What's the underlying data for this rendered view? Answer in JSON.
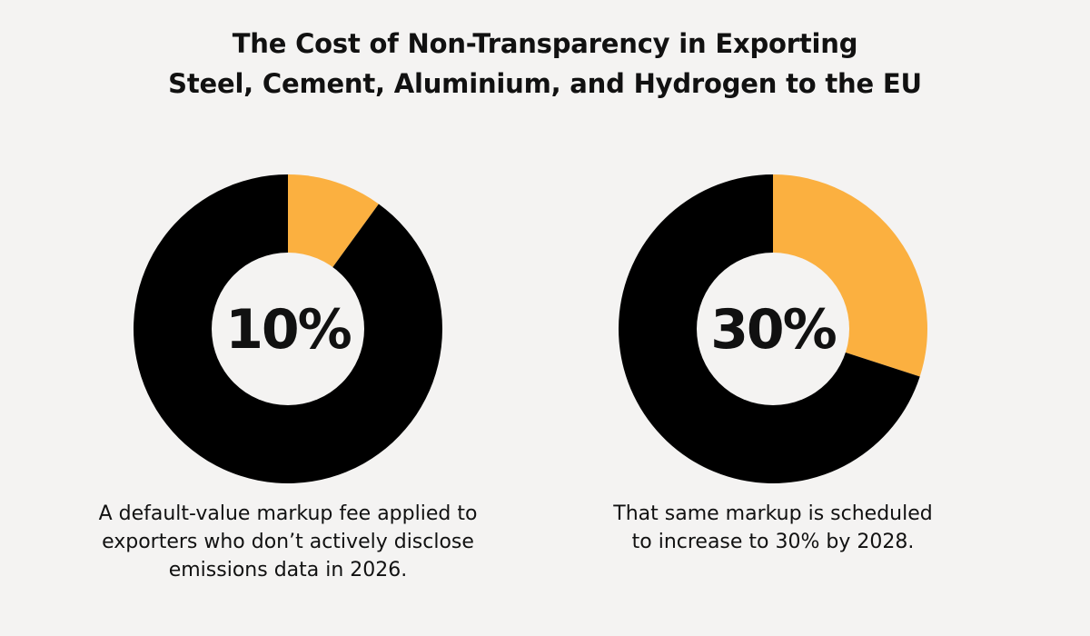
{
  "title": {
    "line1": "The Cost of Non-Transparency in Exporting",
    "line2": "Steel, Cement, Aluminium, and Hydrogen to the EU"
  },
  "colors": {
    "background": "#f4f3f2",
    "highlight": "#fbb040",
    "remainder": "#000000",
    "hole": "#f4f3f2",
    "text": "#111111"
  },
  "chart_data": [
    {
      "type": "pie",
      "title": "",
      "center_label": "10%",
      "slices": [
        {
          "label": "",
          "value": 10,
          "color": "#fbb040"
        },
        {
          "label": "",
          "value": 90,
          "color": "#000000"
        }
      ],
      "caption": [
        "A default-value markup fee applied to",
        "exporters who don’t actively disclose",
        "emissions data in 2026."
      ]
    },
    {
      "type": "pie",
      "title": "",
      "center_label": "30%",
      "slices": [
        {
          "label": "",
          "value": 30,
          "color": "#fbb040"
        },
        {
          "label": "",
          "value": 70,
          "color": "#000000"
        }
      ],
      "caption": [
        "That same markup is scheduled",
        "to increase to 30% by 2028."
      ]
    }
  ]
}
